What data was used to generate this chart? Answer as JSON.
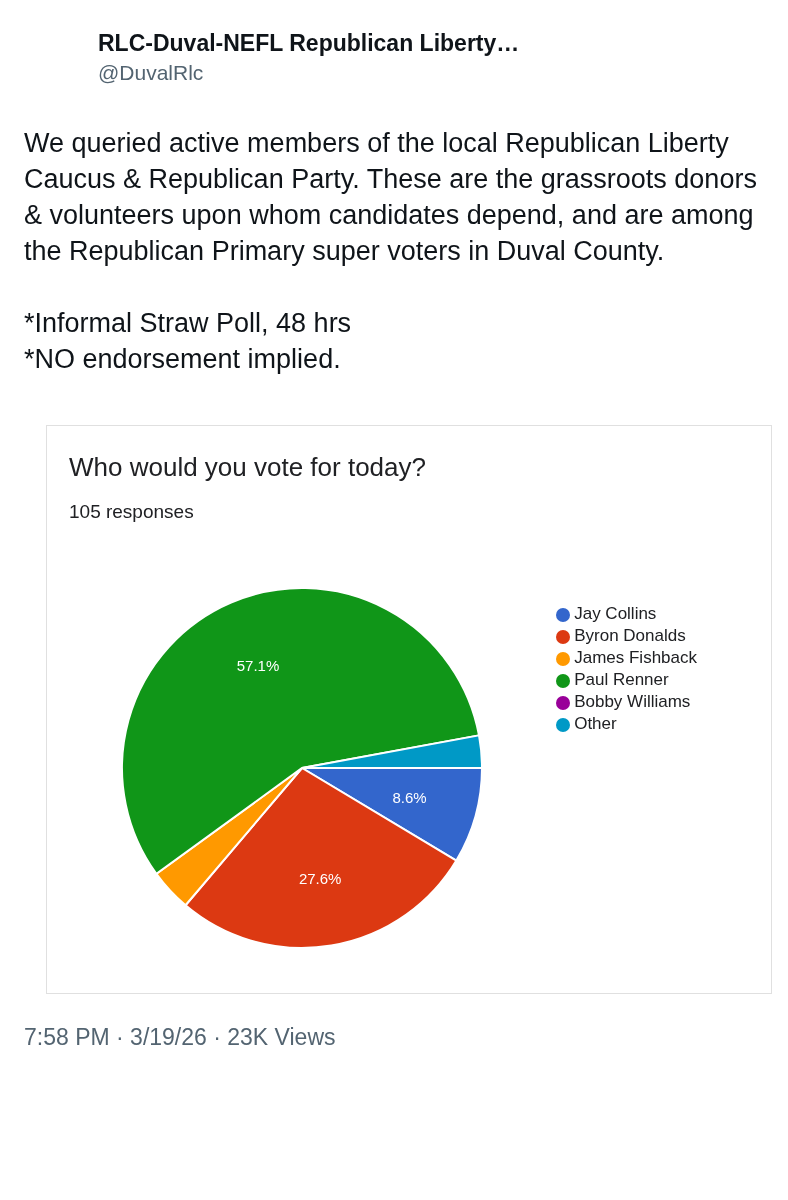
{
  "chart_data": {
    "type": "pie",
    "title": "Who would you vote for today?",
    "subtitle": "105 responses",
    "categories": [
      "Jay Collins",
      "Byron Donalds",
      "James Fishback",
      "Paul Renner",
      "Bobby Williams",
      "Other"
    ],
    "values": [
      8.6,
      27.6,
      3.8,
      57.1,
      0,
      2.9
    ],
    "colors": [
      "#3366cc",
      "#dc3912",
      "#ff9900",
      "#109618",
      "#990099",
      "#0099c6"
    ],
    "value_labels": [
      "8.6%",
      "27.6%",
      null,
      "57.1%",
      null,
      null
    ],
    "legend": "right",
    "annotations": [
      "RLC-Duval-NEFL Republican Liberty…",
      "@DuvalRlc",
      "We queried active members of the local Republican Liberty Caucus & Republican Party. These are the grassroots donors & volunteers upon whom candidates depend, and are among the Republican Primary super voters in Duval County.",
      "*Informal Straw Poll, 48 hrs",
      "*NO endorsement implied.",
      "7:58 PM · 3/19/26 · 23K Views"
    ]
  }
}
